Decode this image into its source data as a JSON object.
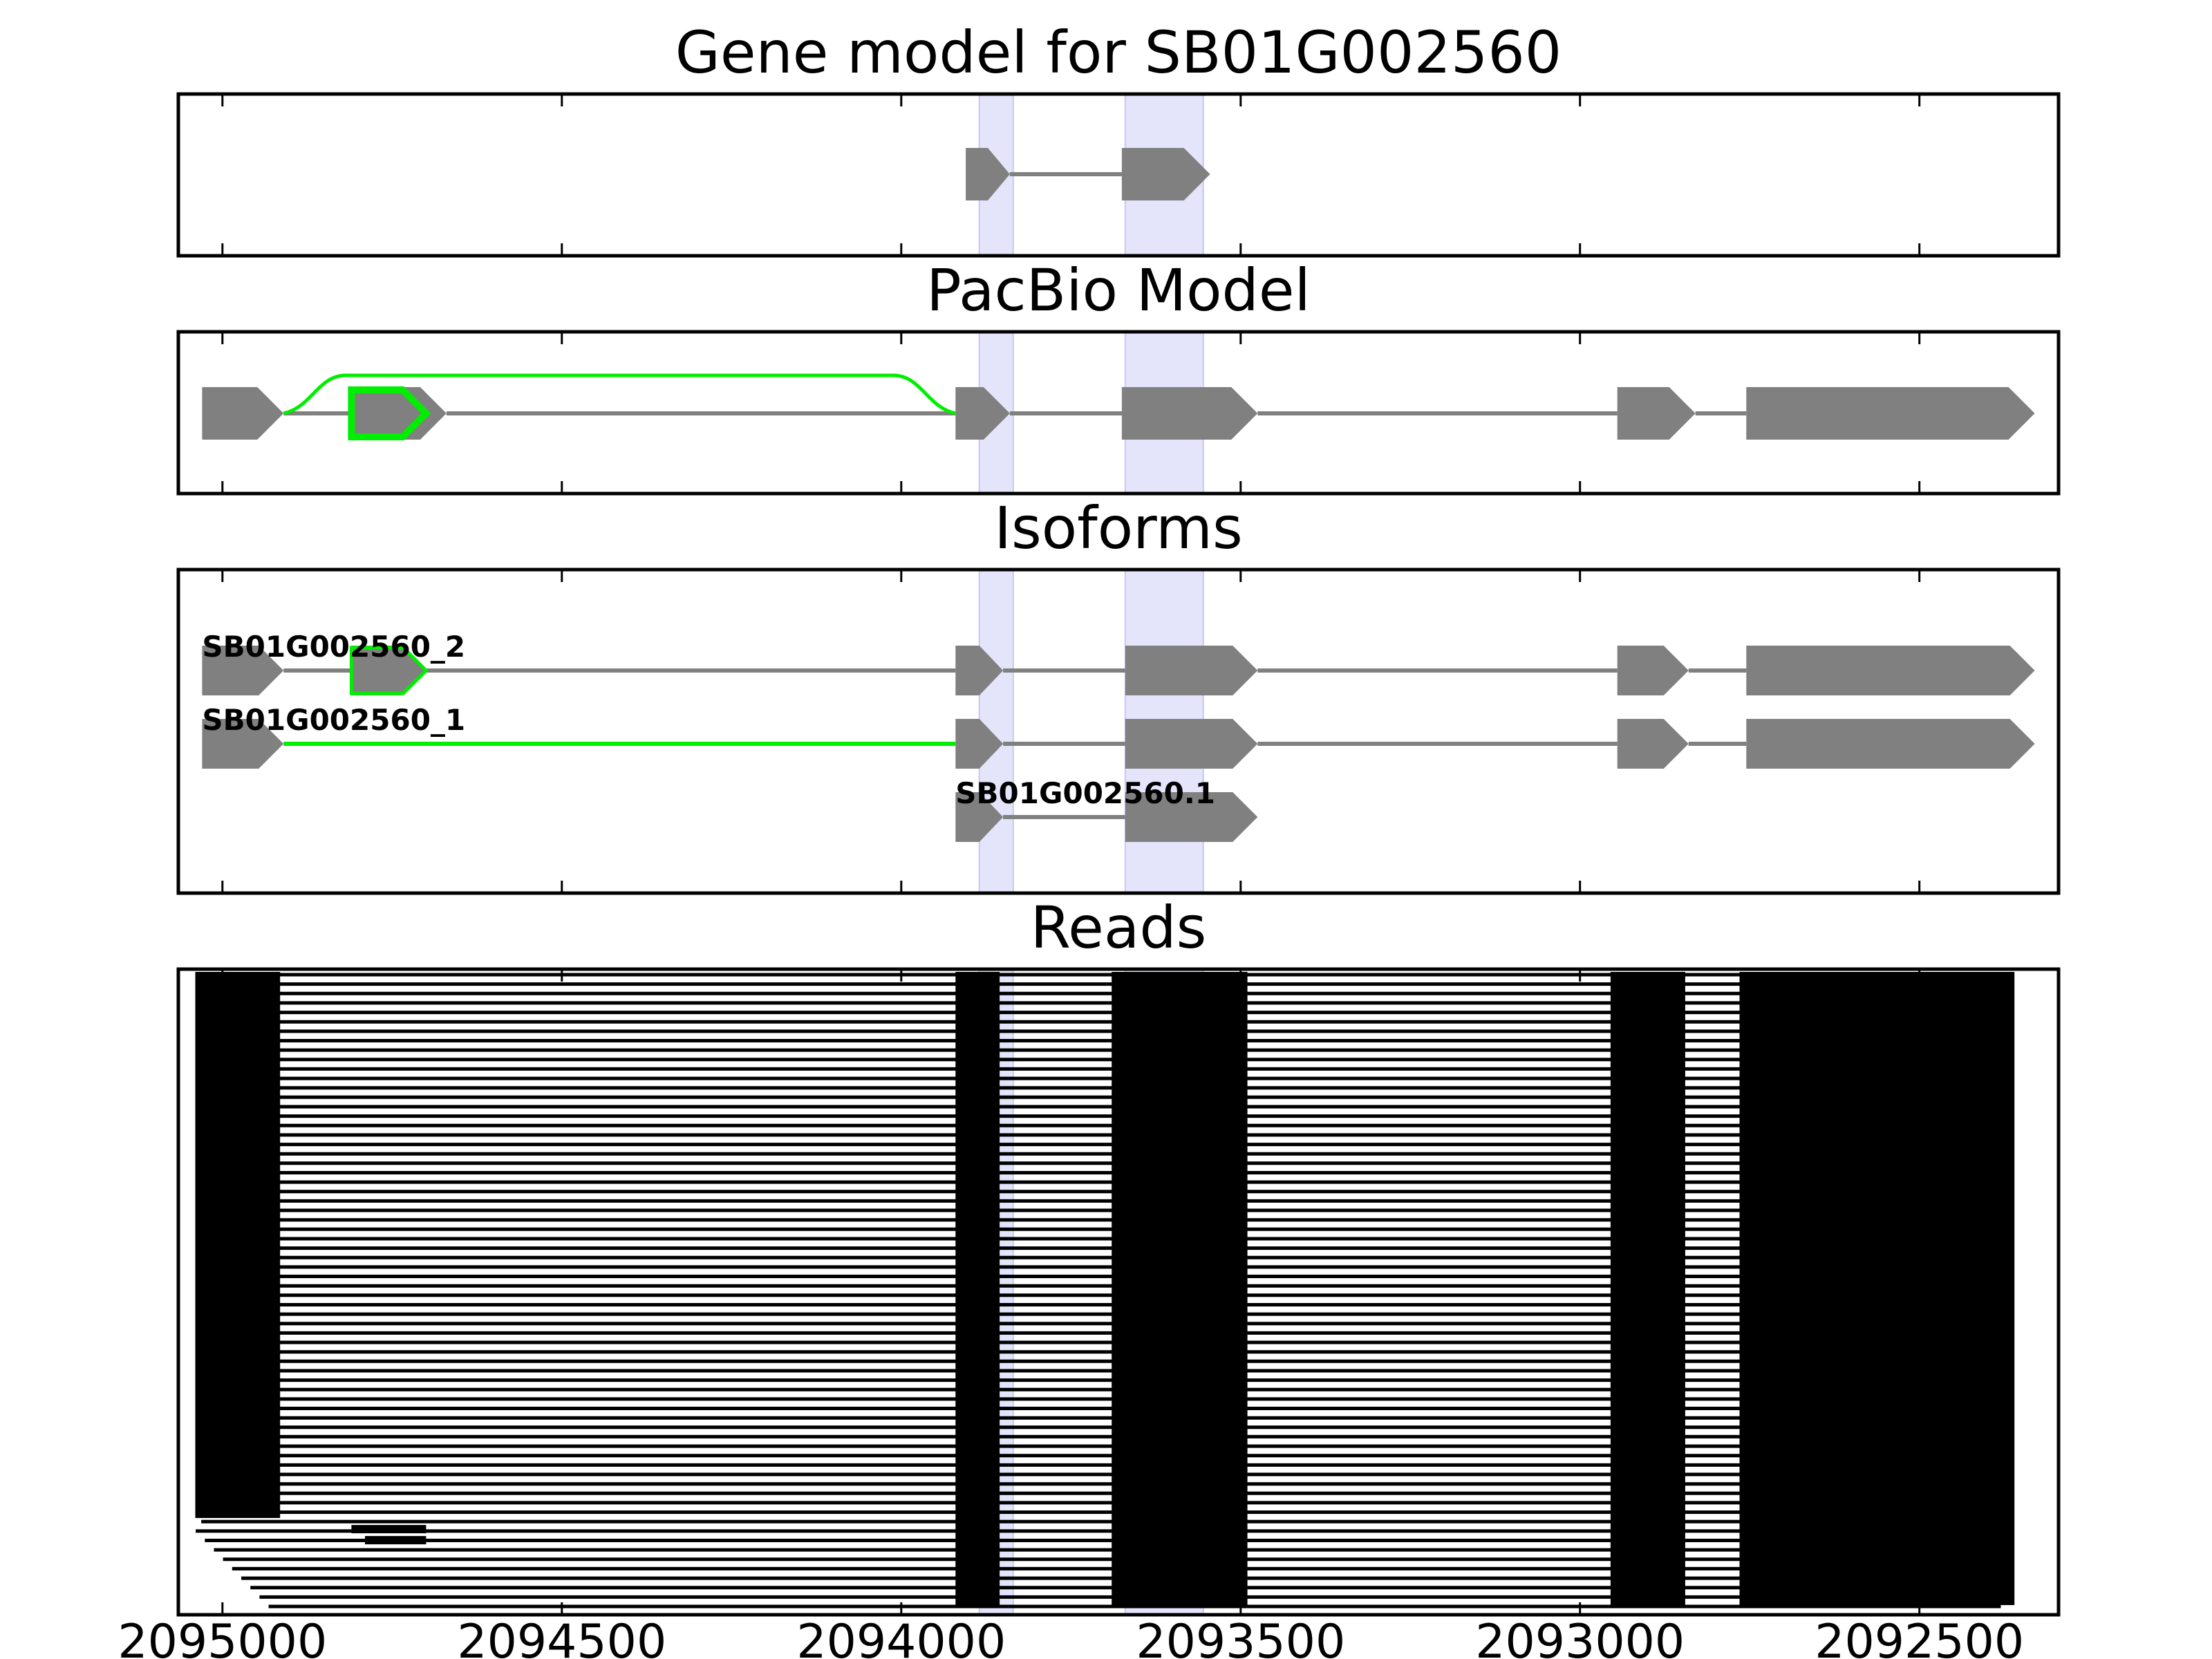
{
  "figure": {
    "panels": [
      {
        "id": "gene",
        "title": "Gene model for SB01G002560"
      },
      {
        "id": "pacbio",
        "title": "PacBio Model"
      },
      {
        "id": "isoforms",
        "title": "Isoforms"
      },
      {
        "id": "reads",
        "title": "Reads"
      }
    ],
    "x_ticks": [
      2095000,
      2094500,
      2094000,
      2093500,
      2093000,
      2092500
    ],
    "x_range": [
      2095065,
      2092295
    ],
    "highlight_regions": [
      [
        2093885,
        2093835
      ],
      [
        2093670,
        2093555
      ]
    ],
    "colors": {
      "feature": "#808080",
      "intron": "#808080",
      "highlight": "#e4e4fb",
      "novel": "#00ee00",
      "reads": "#000000",
      "axis": "#000000"
    }
  },
  "gene_model": {
    "introns": [
      [
        2093840,
        2093675
      ]
    ],
    "exons": [
      [
        2093905,
        2093840
      ],
      [
        2093675,
        2093545
      ]
    ]
  },
  "pacbio_model": {
    "exons": [
      [
        2095030,
        2094910
      ],
      [
        2094780,
        2094670
      ],
      [
        2093920,
        2093840
      ],
      [
        2093675,
        2093475
      ],
      [
        2092945,
        2092830
      ],
      [
        2092755,
        2092330
      ]
    ],
    "introns": [
      [
        2094910,
        2094780
      ],
      [
        2094670,
        2093920
      ],
      [
        2093840,
        2093675
      ],
      [
        2093475,
        2092945
      ],
      [
        2092830,
        2092755
      ]
    ],
    "novel_exon": [
      2094810,
      2094700
    ],
    "novel_junction": [
      2094910,
      2093920
    ]
  },
  "isoforms": [
    {
      "name": "SB01G002560_2",
      "exons": [
        [
          2095030,
          2094910
        ],
        [
          2094810,
          2094700
        ],
        [
          2093920,
          2093850
        ],
        [
          2093670,
          2093475
        ],
        [
          2092945,
          2092840
        ],
        [
          2092755,
          2092330
        ]
      ],
      "introns": [
        [
          2094910,
          2094810
        ],
        [
          2094700,
          2093920
        ],
        [
          2093850,
          2093670
        ],
        [
          2093475,
          2092945
        ],
        [
          2092840,
          2092755
        ]
      ],
      "novel_exon": [
        2094810,
        2094700
      ]
    },
    {
      "name": "SB01G002560_1",
      "exons": [
        [
          2095030,
          2094910
        ],
        [
          2093920,
          2093850
        ],
        [
          2093670,
          2093475
        ],
        [
          2092945,
          2092840
        ],
        [
          2092755,
          2092330
        ]
      ],
      "introns": [
        [
          2093850,
          2093670
        ],
        [
          2093475,
          2092945
        ],
        [
          2092840,
          2092755
        ]
      ],
      "novel_junction": [
        2094910,
        2093920
      ]
    },
    {
      "name": "SB01G002560.1",
      "exons": [
        [
          2093920,
          2093850
        ],
        [
          2093670,
          2093475
        ]
      ],
      "introns": [
        [
          2093850,
          2093670
        ]
      ]
    }
  ],
  "reads": {
    "block_columns": [
      [
        2095040,
        2094915
      ],
      [
        2093920,
        2093855
      ],
      [
        2093690,
        2093490
      ],
      [
        2092955,
        2092845
      ],
      [
        2092765,
        2092360
      ]
    ],
    "right_ends": [
      2092520,
      2092445,
      2092435,
      2092420,
      2092410,
      2092410,
      2092405,
      2092400,
      2092390,
      2092385,
      2092385,
      2092385,
      2092380,
      2092380,
      2092375,
      2092375,
      2092375,
      2092375,
      2092520,
      2092425,
      2092515,
      2092410,
      2092410,
      2092405,
      2092400,
      2092400,
      2092395,
      2092390,
      2092390,
      2092385,
      2092385,
      2092375,
      2092440,
      2092420,
      2092415,
      2092415,
      2092410,
      2092410,
      2092405,
      2092400,
      2092390,
      2092390,
      2092385,
      2092385,
      2092380,
      2092380,
      2092375,
      2092375,
      2092375,
      2092375,
      2092425,
      2092415,
      2092405,
      2092400,
      2092390,
      2092380,
      2092520,
      2092420,
      2092415,
      2092410,
      2092410,
      2092405,
      2092400,
      2092390,
      2092390,
      2092385,
      2092380,
      2092380
    ],
    "novel_exon_read": [
      2094810,
      2094700
    ],
    "novel_exon_read_2": [
      2094790,
      2094700
    ]
  }
}
